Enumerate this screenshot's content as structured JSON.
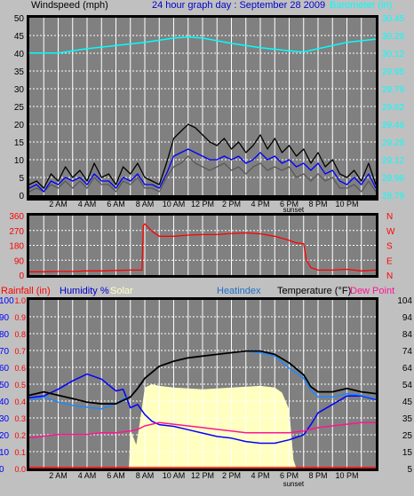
{
  "colors": {
    "frame": "#c0c0c0",
    "plot_bg": "#808080",
    "grid": "#ffffff",
    "wind_gust": "#000000",
    "wind_avg": "#0000ff",
    "wind_speed": "#5a5a5a",
    "barometer": "#00ffff",
    "direction": "#ff0000",
    "rainfall": "#ff0000",
    "humidity": "#0000ff",
    "solar": "#ffffc0",
    "heatindex": "#1e88ff",
    "temperature": "#000000",
    "dewpoint": "#ff1493"
  },
  "chart_data": [
    {
      "type": "line",
      "title": "24 hour graph day : September 28 2009",
      "ylabel": "Windspeed (mph)",
      "y2label": "Barometer (in)",
      "x_ticks": [
        "2 AM",
        "4 AM",
        "6 AM",
        "8 AM",
        "10 AM",
        "12 PM",
        "2 PM",
        "4 PM",
        "6 PM",
        "8 PM",
        "10 PM"
      ],
      "x_hours": [
        2,
        4,
        6,
        8,
        10,
        12,
        14,
        16,
        18,
        20,
        22
      ],
      "sunset_label": "sunset",
      "xlim": [
        0,
        24
      ],
      "ylim": [
        0,
        50
      ],
      "y_ticks": [
        0,
        5,
        10,
        15,
        20,
        25,
        30,
        35,
        40,
        45,
        50
      ],
      "y2lim": [
        28.79,
        30.45
      ],
      "y2_ticks": [
        "28.79",
        "28.96",
        "29.12",
        "29.29",
        "29.46",
        "29.62",
        "29.79",
        "29.95",
        "30.12",
        "30.29",
        "30.45"
      ],
      "series": [
        {
          "key": "gust",
          "axis": "left",
          "x": [
            0,
            0.5,
            1,
            1.5,
            2,
            2.5,
            3,
            3.5,
            4,
            4.5,
            5,
            5.5,
            6,
            6.5,
            7,
            7.5,
            8,
            8.5,
            9,
            9.5,
            10,
            10.5,
            11,
            11.5,
            12,
            12.5,
            13,
            13.5,
            14,
            14.5,
            15,
            15.5,
            16,
            16.5,
            17,
            17.5,
            18,
            18.5,
            19,
            19.5,
            20,
            20.5,
            21,
            21.5,
            22,
            22.5,
            23,
            23.5,
            24
          ],
          "y": [
            3,
            4,
            2,
            6,
            4,
            8,
            5,
            7,
            4,
            9,
            5,
            6,
            3,
            8,
            6,
            9,
            5,
            4,
            3,
            9,
            16,
            18,
            20,
            19,
            17,
            15,
            14,
            16,
            13,
            15,
            12,
            14,
            17,
            13,
            16,
            12,
            14,
            11,
            13,
            9,
            12,
            8,
            10,
            6,
            5,
            7,
            4,
            9,
            3
          ]
        },
        {
          "key": "avg",
          "axis": "left",
          "x": [
            0,
            0.5,
            1,
            1.5,
            2,
            2.5,
            3,
            3.5,
            4,
            4.5,
            5,
            5.5,
            6,
            6.5,
            7,
            7.5,
            8,
            8.5,
            9,
            9.5,
            10,
            10.5,
            11,
            11.5,
            12,
            12.5,
            13,
            13.5,
            14,
            14.5,
            15,
            15.5,
            16,
            16.5,
            17,
            17.5,
            18,
            18.5,
            19,
            19.5,
            20,
            20.5,
            21,
            21.5,
            22,
            22.5,
            23,
            23.5,
            24
          ],
          "y": [
            2,
            3,
            1,
            4,
            3,
            5,
            4,
            5,
            3,
            6,
            4,
            4,
            2,
            5,
            4,
            6,
            3,
            3,
            2,
            6,
            11,
            12,
            13,
            12,
            11,
            10,
            10,
            11,
            10,
            11,
            9,
            10,
            12,
            10,
            11,
            9,
            10,
            8,
            9,
            7,
            9,
            6,
            7,
            4,
            3,
            5,
            3,
            6,
            2
          ]
        },
        {
          "key": "speed",
          "axis": "left",
          "x": [
            0,
            0.5,
            1,
            1.5,
            2,
            2.5,
            3,
            3.5,
            4,
            4.5,
            5,
            5.5,
            6,
            6.5,
            7,
            7.5,
            8,
            8.5,
            9,
            9.5,
            10,
            10.5,
            11,
            11.5,
            12,
            12.5,
            13,
            13.5,
            14,
            14.5,
            15,
            15.5,
            16,
            16.5,
            17,
            17.5,
            18,
            18.5,
            19,
            19.5,
            20,
            20.5,
            21,
            21.5,
            22,
            22.5,
            23,
            23.5,
            24
          ],
          "y": [
            1,
            2,
            1,
            3,
            2,
            4,
            2,
            4,
            2,
            5,
            3,
            3,
            1,
            4,
            3,
            5,
            2,
            2,
            1,
            5,
            8,
            9,
            11,
            9,
            8,
            7,
            8,
            9,
            7,
            8,
            6,
            8,
            9,
            7,
            8,
            7,
            8,
            5,
            6,
            4,
            6,
            4,
            5,
            2,
            2,
            3,
            1,
            4,
            1
          ]
        },
        {
          "key": "baro",
          "axis": "right",
          "x": [
            0,
            2,
            4,
            6,
            8,
            10,
            11,
            12,
            14,
            16,
            18,
            19,
            20,
            22,
            24
          ],
          "y": [
            30.12,
            30.12,
            30.16,
            30.19,
            30.22,
            30.26,
            30.27,
            30.26,
            30.21,
            30.17,
            30.14,
            30.13,
            30.16,
            30.22,
            30.25
          ]
        }
      ]
    },
    {
      "type": "line",
      "title": "",
      "ylabel": "",
      "xlim": [
        0,
        24
      ],
      "ylim": [
        0,
        360
      ],
      "y_ticks": [
        "0",
        "90",
        "180",
        "270",
        "360"
      ],
      "y2_ticks": [
        "N",
        "E",
        "S",
        "W",
        "N"
      ],
      "series": [
        {
          "key": "dir",
          "x": [
            0,
            1,
            2,
            3,
            4,
            5,
            6,
            7,
            7.8,
            7.9,
            8,
            8.5,
            9,
            10,
            11,
            12,
            13,
            14,
            15,
            16,
            17,
            18,
            18.5,
            19,
            19.2,
            19.5,
            20,
            21,
            22,
            23,
            24
          ],
          "y": [
            20,
            20,
            22,
            22,
            25,
            25,
            28,
            30,
            30,
            300,
            310,
            265,
            235,
            235,
            242,
            245,
            245,
            252,
            255,
            250,
            235,
            210,
            195,
            190,
            90,
            45,
            30,
            30,
            35,
            25,
            30
          ]
        }
      ]
    },
    {
      "type": "line",
      "title": "",
      "labels": [
        "Rainfall (in)",
        "Humidity %",
        "Solar",
        "Heatindex",
        "Temperature (°F)",
        "Dew Point"
      ],
      "xlim": [
        0,
        24
      ],
      "y_ticks": [
        "0",
        "10",
        "20",
        "30",
        "40",
        "50",
        "60",
        "70",
        "80",
        "90",
        "100"
      ],
      "y1_ticks": [
        "0.0",
        "0.1",
        "0.2",
        "0.3",
        "0.4",
        "0.5",
        "0.6",
        "0.7",
        "0.8",
        "0.9",
        "1.0"
      ],
      "y2lim": [
        5,
        104
      ],
      "y2_ticks": [
        "5",
        "15",
        "25",
        "35",
        "45",
        "54",
        "64",
        "74",
        "84",
        "94",
        "104"
      ],
      "x_ticks": [
        "2 AM",
        "4 AM",
        "6 AM",
        "8 AM",
        "10 AM",
        "12 PM",
        "2 PM",
        "4 PM",
        "6 PM",
        "8 PM",
        "10 PM"
      ],
      "x_hours": [
        2,
        4,
        6,
        8,
        10,
        12,
        14,
        16,
        18,
        20,
        22
      ],
      "sunset_label": "sunset",
      "series": [
        {
          "key": "solar",
          "axis": "pct",
          "x": [
            0,
            6.5,
            6.9,
            7,
            7.4,
            7.6,
            8,
            8.5,
            9,
            10,
            12,
            14,
            16,
            17,
            17.5,
            18,
            18.3,
            18.5,
            24
          ],
          "y": [
            0,
            0,
            0,
            23,
            14,
            24,
            48,
            50,
            49,
            48,
            47,
            48,
            49,
            48,
            45,
            35,
            5,
            0,
            0
          ]
        },
        {
          "key": "rain",
          "axis": "pct",
          "x": [
            0,
            24
          ],
          "y": [
            0.5,
            0.5
          ]
        },
        {
          "key": "humidity",
          "axis": "pct",
          "x": [
            0,
            1,
            2,
            3,
            4,
            5,
            6,
            6.5,
            7,
            7.5,
            8,
            8.5,
            9,
            10,
            11,
            12,
            13,
            14,
            15,
            16,
            17,
            18,
            19,
            19.5,
            20,
            21,
            22,
            23,
            24
          ],
          "y": [
            42,
            43,
            47,
            52,
            56,
            53,
            46,
            47,
            36,
            38,
            32,
            28,
            26,
            25,
            23,
            21,
            19,
            18,
            16,
            15,
            15,
            17,
            20,
            26,
            33,
            38,
            43,
            43,
            41
          ]
        },
        {
          "key": "heatindex",
          "axis": "temp",
          "x": [
            0,
            1,
            2,
            3,
            4,
            5,
            6,
            6.5,
            7,
            7.5,
            8,
            9,
            10,
            11,
            12,
            13,
            14,
            15,
            16,
            17,
            18,
            19,
            19.5,
            20,
            21,
            22,
            23,
            24
          ],
          "y": [
            45,
            47,
            44,
            42,
            41,
            40,
            43,
            46,
            47,
            52,
            58,
            65,
            68,
            70,
            71,
            72,
            73,
            74,
            73,
            71,
            64,
            58,
            51,
            47,
            47,
            49,
            48,
            46
          ]
        },
        {
          "key": "temp",
          "axis": "temp",
          "x": [
            0,
            1,
            2,
            3,
            4,
            5,
            6,
            6.5,
            7,
            7.5,
            8,
            9,
            10,
            11,
            12,
            13,
            14,
            15,
            16,
            17,
            18,
            19,
            19.5,
            20,
            21,
            22,
            23,
            24
          ],
          "y": [
            48,
            50,
            48,
            46,
            44,
            43,
            43,
            45,
            47,
            52,
            58,
            65,
            68,
            70,
            71,
            72,
            73,
            74,
            74,
            72,
            67,
            60,
            53,
            50,
            50,
            52,
            50,
            49
          ]
        },
        {
          "key": "dew",
          "axis": "temp",
          "x": [
            0,
            1,
            2,
            3,
            4,
            5,
            6,
            7,
            7.5,
            8,
            9,
            10,
            11,
            12,
            13,
            14,
            15,
            16,
            17,
            18,
            19,
            20,
            21,
            22,
            23,
            24
          ],
          "y": [
            23,
            24,
            25,
            25,
            25,
            26,
            26,
            27,
            28,
            30,
            32,
            31,
            30,
            29,
            28,
            27,
            26,
            26,
            26,
            26,
            27,
            29,
            30,
            31,
            32,
            32
          ]
        }
      ]
    }
  ]
}
